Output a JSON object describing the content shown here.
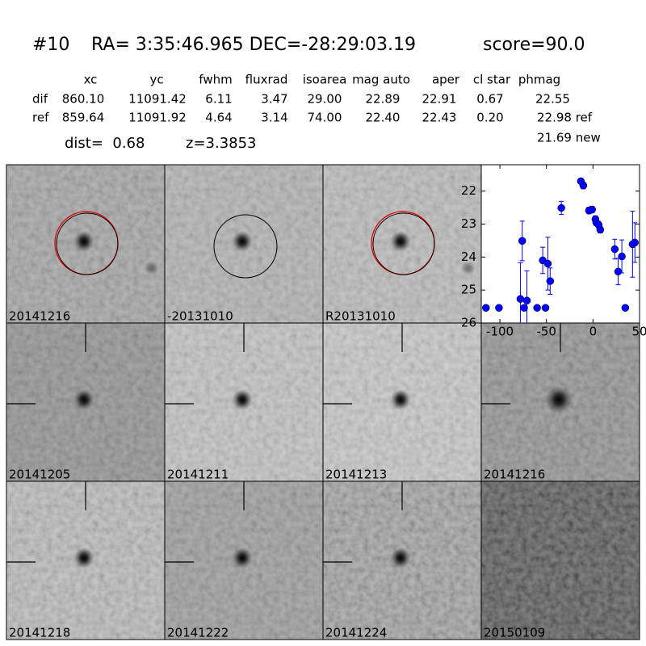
{
  "header": {
    "id": "#10",
    "coords": "RA= 3:35:46.965 DEC=-28:29:03.19",
    "score": "score=90.0"
  },
  "table": {
    "columns": [
      "xc",
      "yc",
      "fwhm",
      "fluxrad",
      "isoarea",
      "mag auto",
      "aper",
      "cl star",
      "phmag"
    ],
    "rows": [
      {
        "label": "dif",
        "cells": [
          "860.10",
          "11091.42",
          "6.11",
          "3.47",
          "29.00",
          "22.89",
          "22.91",
          "0.67",
          "22.55"
        ]
      },
      {
        "label": "ref",
        "cells": [
          "859.64",
          "11091.92",
          "4.64",
          "3.14",
          "74.00",
          "22.40",
          "22.43",
          "0.20",
          "22.98 ref"
        ]
      }
    ],
    "note": "21.69 new"
  },
  "dist": "dist=  0.68",
  "z": "z=3.3853",
  "stamps": [
    {
      "label": "20141216"
    },
    {
      "label": "-20131010"
    },
    {
      "label": "R20131010"
    },
    {
      "label": "20141205"
    },
    {
      "label": "20141211"
    },
    {
      "label": "20141213"
    },
    {
      "label": "20141216",
      "color": "#ff0000"
    },
    {
      "label": "20141218"
    },
    {
      "label": "20141222"
    },
    {
      "label": "20141224"
    },
    {
      "label": "20150109"
    }
  ],
  "chart_data": {
    "type": "scatter",
    "color": "#0000ff",
    "x": [
      -115,
      -101,
      -78,
      -76,
      -74,
      -71,
      -60,
      -54,
      -51,
      -48.5,
      -46,
      -34,
      -13,
      -10.4,
      -4.3,
      -1,
      2.6,
      3.5,
      6,
      7.8,
      23.4,
      27,
      31,
      34.7,
      42.5,
      45
    ],
    "values": [
      25.54,
      25.54,
      25.27,
      23.51,
      25.54,
      25.32,
      25.54,
      24.1,
      25.54,
      24.2,
      24.73,
      22.51,
      21.7,
      21.83,
      22.59,
      22.56,
      22.85,
      22.95,
      23.02,
      23.17,
      23.76,
      24.44,
      23.98,
      25.54,
      23.61,
      23.56
    ],
    "errors": [
      null,
      null,
      1.1,
      0.6,
      null,
      0.9,
      null,
      0.4,
      null,
      0.8,
      0.4,
      0.2,
      0.05,
      0.1,
      0.1,
      0.1,
      0.1,
      0.1,
      0.1,
      0.1,
      0.3,
      0.4,
      0.5,
      null,
      1.0,
      0.6
    ],
    "xlim": [
      -120,
      50
    ],
    "xticks": [
      -100,
      -50,
      0,
      50
    ],
    "ylim": [
      26,
      21.2
    ],
    "yticks": [
      22,
      23,
      24,
      25,
      26
    ]
  }
}
